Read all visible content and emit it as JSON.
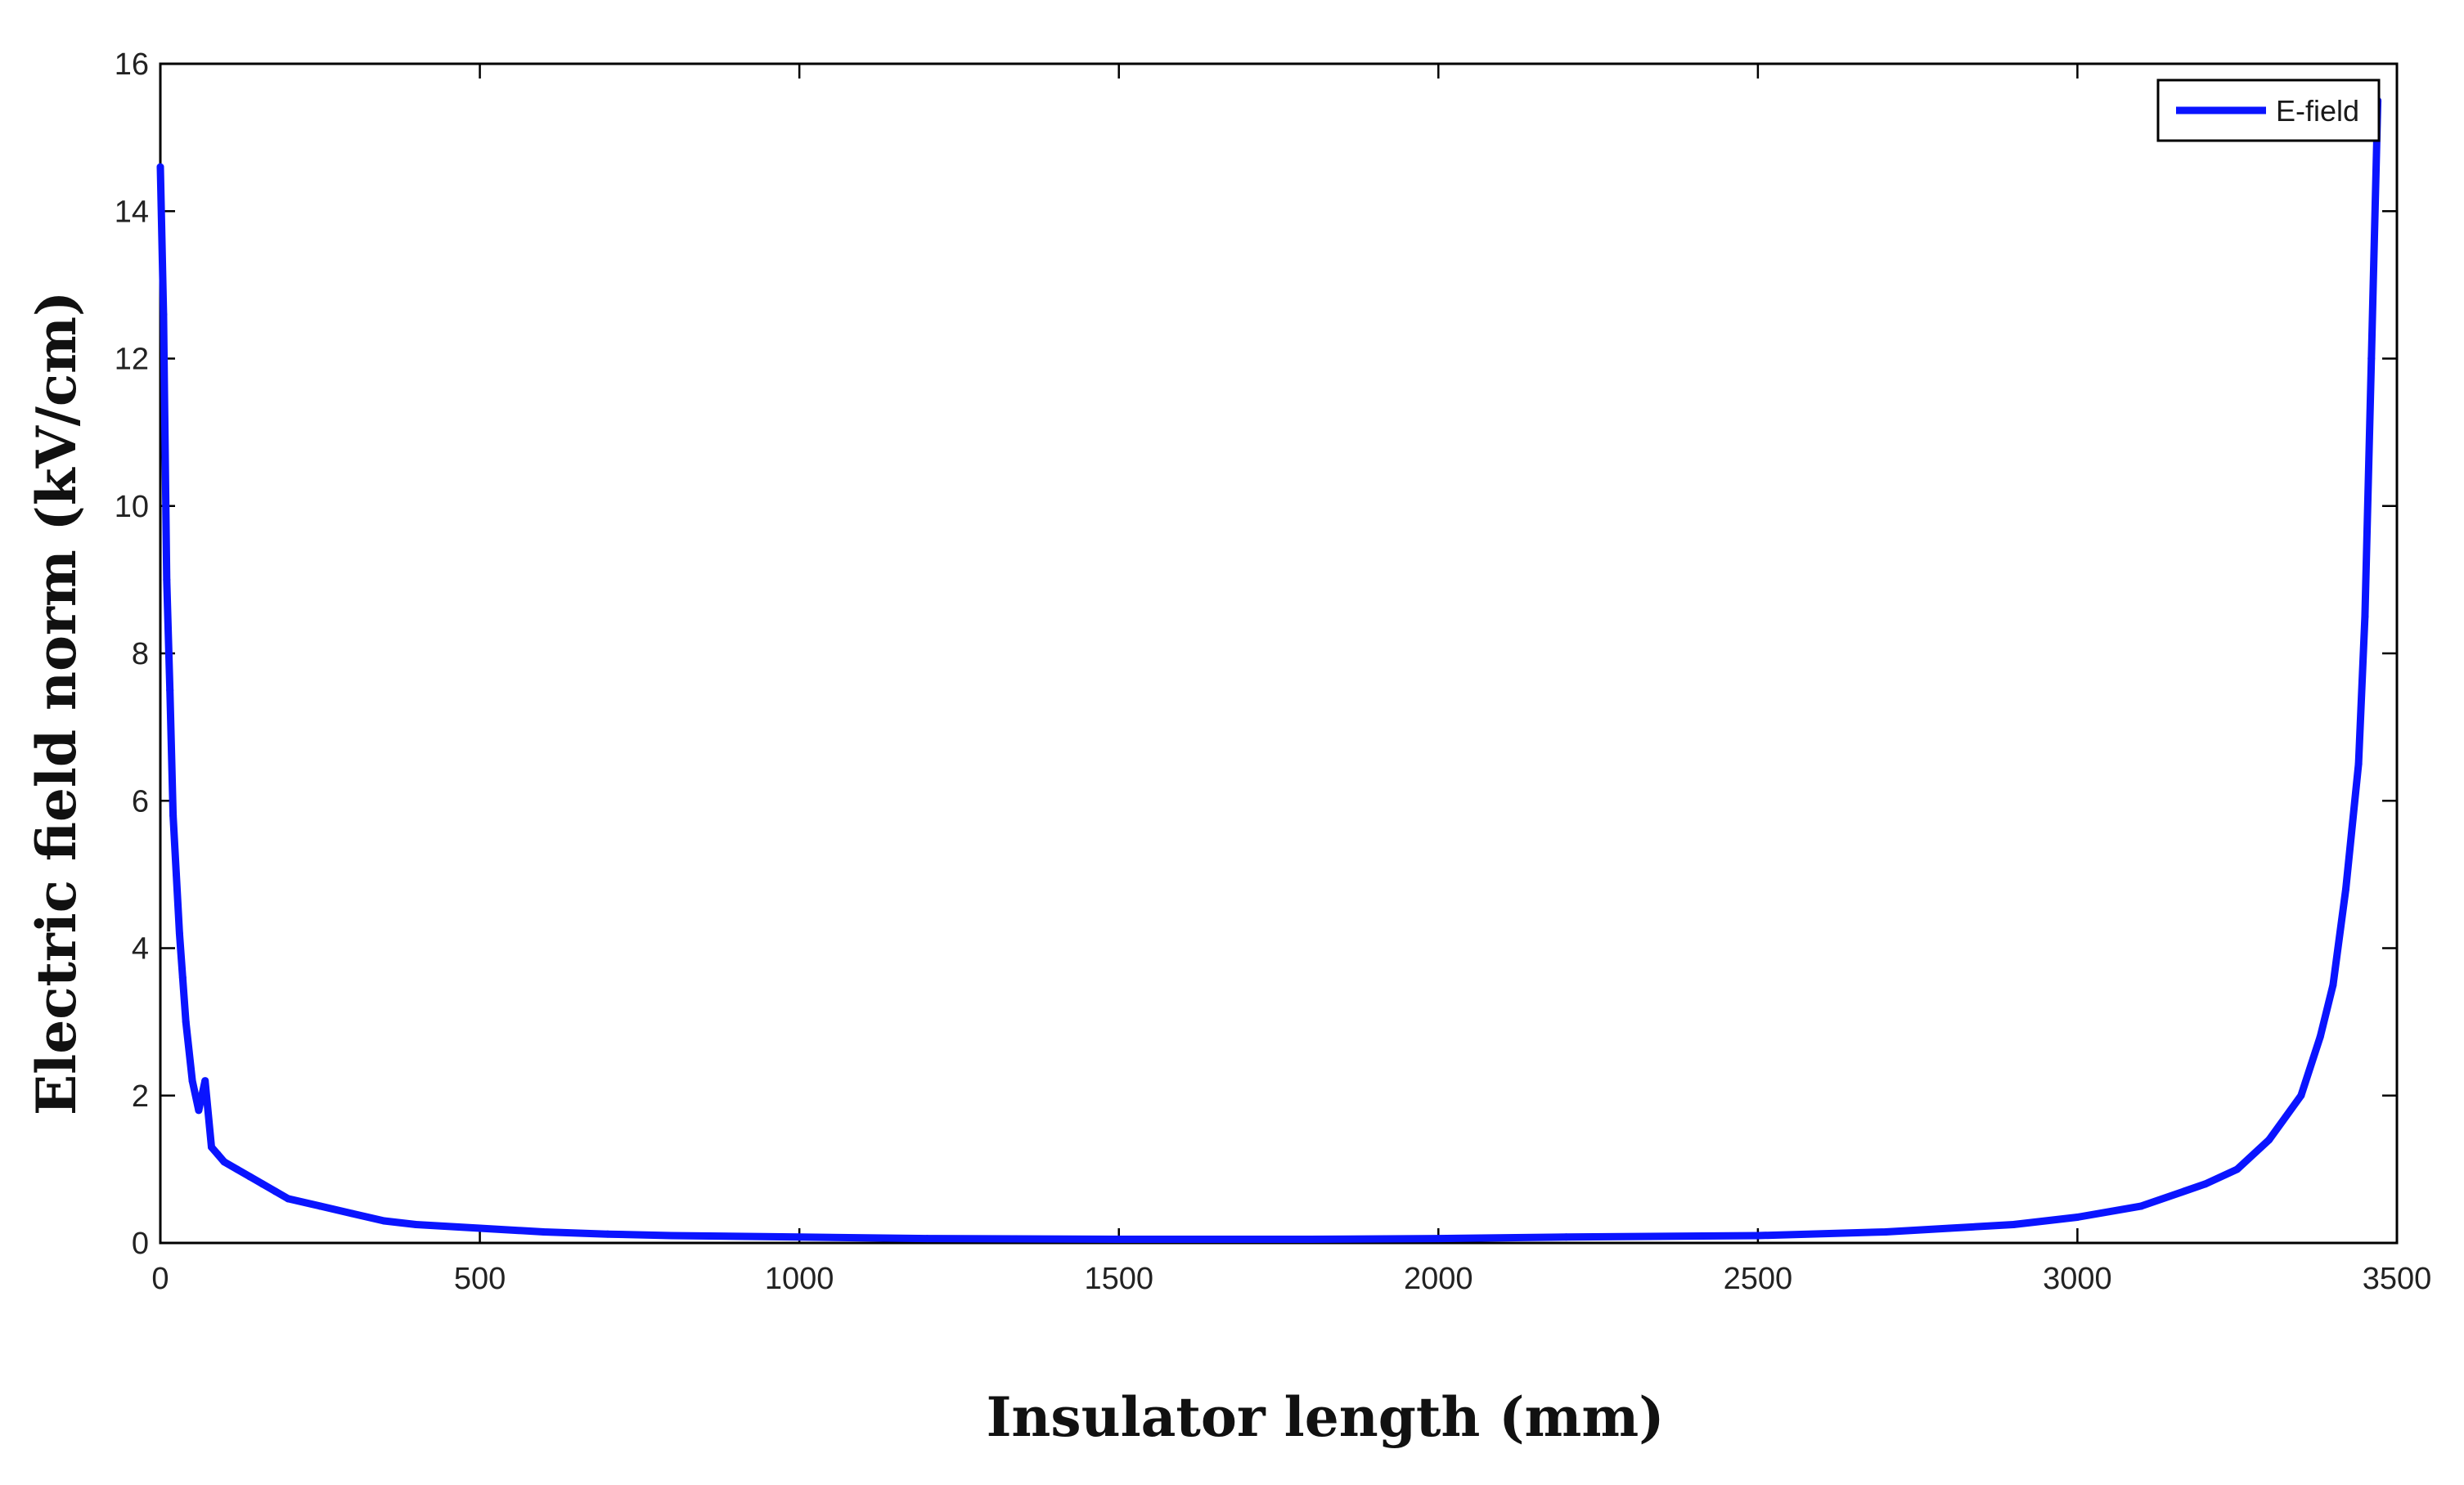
{
  "chart_data": {
    "type": "line",
    "title": "",
    "xlabel": "Insulator length (mm)",
    "ylabel": "Electric field norm (kV/cm)",
    "xlim": [
      0,
      3500
    ],
    "ylim": [
      0,
      16
    ],
    "x_ticks": [
      "0",
      "500",
      "1000",
      "1500",
      "2000",
      "2500",
      "3000",
      "3500"
    ],
    "y_ticks": [
      "0",
      "2",
      "4",
      "6",
      "8",
      "10",
      "12",
      "14",
      "16"
    ],
    "grid": false,
    "legend": {
      "position": "top-right"
    },
    "series": [
      {
        "name": "E-field",
        "color": "#0a14ff",
        "x": [
          0,
          5,
          10,
          15,
          20,
          25,
          30,
          35,
          40,
          50,
          60,
          70,
          80,
          90,
          100,
          120,
          140,
          160,
          180,
          200,
          250,
          300,
          350,
          400,
          500,
          600,
          700,
          800,
          1000,
          1200,
          1500,
          1800,
          2000,
          2200,
          2500,
          2700,
          2800,
          2900,
          3000,
          3100,
          3200,
          3250,
          3300,
          3350,
          3380,
          3400,
          3420,
          3440,
          3450,
          3460,
          3470
        ],
        "y": [
          14.6,
          12.6,
          9.0,
          7.5,
          5.8,
          5.0,
          4.2,
          3.6,
          3.0,
          2.2,
          1.8,
          2.2,
          1.3,
          1.2,
          1.1,
          1.0,
          0.9,
          0.8,
          0.7,
          0.6,
          0.5,
          0.4,
          0.3,
          0.25,
          0.2,
          0.15,
          0.12,
          0.1,
          0.08,
          0.06,
          0.05,
          0.05,
          0.06,
          0.08,
          0.1,
          0.15,
          0.2,
          0.25,
          0.35,
          0.5,
          0.8,
          1.0,
          1.4,
          2.0,
          2.8,
          3.5,
          4.8,
          6.5,
          8.5,
          12.0,
          15.5
        ]
      }
    ]
  }
}
